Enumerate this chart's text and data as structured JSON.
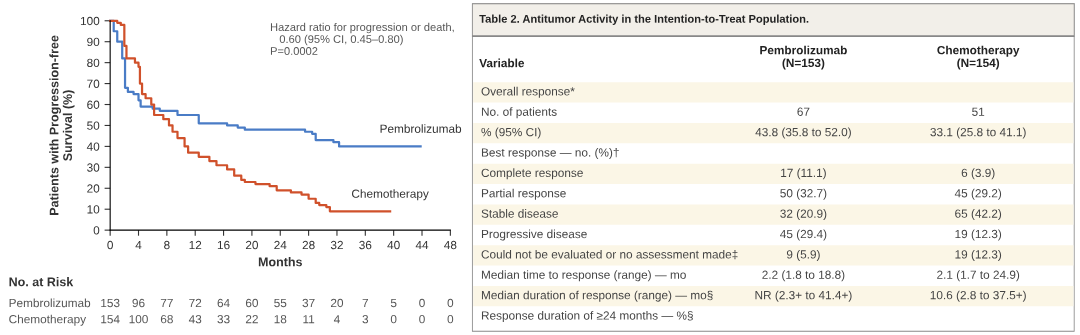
{
  "chart_data": [
    {
      "type": "step",
      "xlabel": "Months",
      "ylabel": "Patients with Progression-free\nSurvival (%)",
      "xlim": [
        0,
        48
      ],
      "xticks": [
        0,
        4,
        8,
        12,
        16,
        20,
        24,
        28,
        32,
        36,
        40,
        44,
        48
      ],
      "ylim": [
        0,
        100
      ],
      "yticks": [
        0,
        10,
        20,
        30,
        40,
        50,
        60,
        70,
        80,
        90,
        100
      ],
      "grid": false,
      "legend": false,
      "annotations": [
        "Hazard ratio for progression or death,\n   0.60 (95% CI, 0.45–0.80)\nP=0.0002"
      ],
      "series": [
        {
          "name": "Pembrolizumab",
          "color": "#4a7cc6",
          "x": [
            0,
            0.5,
            1,
            1.7,
            2.1,
            2.5,
            3.3,
            4,
            4.3,
            6,
            7,
            9.5,
            12.5,
            16.5,
            18,
            19,
            27.5,
            28.5,
            29,
            31.5,
            32.3,
            43.8
          ],
          "values": [
            100,
            95,
            90,
            82,
            68,
            66,
            65,
            62,
            59,
            58,
            57,
            55,
            51,
            50,
            49,
            48,
            47,
            46,
            43,
            42,
            40,
            40
          ]
        },
        {
          "name": "Chemotherapy",
          "color": "#d0512b",
          "x": [
            0,
            1,
            1.5,
            2,
            2.3,
            3.5,
            4,
            4.2,
            4.5,
            5,
            5.8,
            6.2,
            7.5,
            8.3,
            8.8,
            9.5,
            10.5,
            11,
            12.5,
            14,
            15,
            16.5,
            17.5,
            18.5,
            19,
            20.5,
            22.5,
            23.5,
            25.5,
            27,
            28,
            29,
            29.5,
            30.5,
            31,
            39.5
          ],
          "values": [
            100,
            99,
            98,
            88,
            82,
            80,
            78,
            70,
            65,
            63,
            60,
            55,
            53,
            50,
            47,
            44,
            40,
            37,
            35,
            33,
            31,
            29,
            26,
            24,
            23,
            22,
            21,
            19,
            18,
            17,
            15,
            13,
            12,
            11,
            9,
            9
          ]
        }
      ]
    },
    {
      "type": "other",
      "title": "No. at Risk",
      "categories": [
        null,
        null,
        null,
        null,
        null,
        null,
        null,
        null,
        null,
        null,
        null,
        null,
        null
      ],
      "y_categories": [
        "Pembrolizumab",
        "Chemotherapy"
      ],
      "cell_labels": [
        [
          "153",
          "96",
          "77",
          "72",
          "64",
          "60",
          "55",
          "37",
          "20",
          "7",
          "5",
          "0",
          "0"
        ],
        [
          "154",
          "100",
          "68",
          "43",
          "33",
          "22",
          "18",
          "11",
          "4",
          "3",
          "0",
          "0",
          "0"
        ]
      ]
    },
    {
      "type": "other",
      "title": "Table 2. Antitumor Activity in the Intention-to-Treat Population.",
      "ylabel": "Variable",
      "categories": [
        "Pembrolizumab\n(N=153)",
        "Chemotherapy\n(N=154)"
      ],
      "y_categories": [
        "Overall response*",
        "No. of patients",
        "% (95% CI)",
        "Best response — no. (%)†",
        "Complete response",
        "Partial response",
        "Stable disease",
        "Progressive disease",
        "Could not be evaluated or no assessment made‡",
        "Median time to response (range) — mo",
        "Median duration of response (range) — mo§",
        "Response duration of ≥24 months — %§"
      ],
      "cell_labels": [
        [
          null,
          null
        ],
        [
          "67",
          "51"
        ],
        [
          "43.8 (35.8 to 52.0)",
          "33.1 (25.8 to 41.1)"
        ],
        [
          null,
          null
        ],
        [
          "17 (11.1)",
          "6 (3.9)"
        ],
        [
          "50 (32.7)",
          "45 (29.2)"
        ],
        [
          "32 (20.9)",
          "65 (42.2)"
        ],
        [
          "45 (29.4)",
          "19 (12.3)"
        ],
        [
          "9 (5.9)",
          "19 (12.3)"
        ],
        [
          "2.2 (1.8 to 18.8)",
          "2.1 (1.7 to 24.9)"
        ],
        [
          "NR (2.3+ to 41.4+)",
          "10.6 (2.8 to 37.5+)"
        ],
        [
          null,
          null
        ]
      ]
    }
  ]
}
